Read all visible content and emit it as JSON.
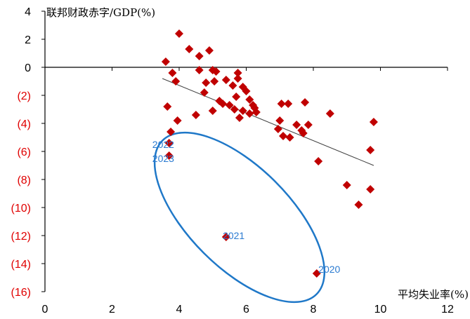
{
  "chart_data": {
    "type": "scatter",
    "ylabel": "联邦财政赤字/GDP(%)",
    "xlabel": "平均失业率(%)",
    "xlim": [
      0,
      12
    ],
    "ylim": [
      -16,
      4
    ],
    "x_ticks": [
      {
        "value": 0,
        "label": "0"
      },
      {
        "value": 2,
        "label": "2"
      },
      {
        "value": 4,
        "label": "4"
      },
      {
        "value": 6,
        "label": "6"
      },
      {
        "value": 8,
        "label": "8"
      },
      {
        "value": 10,
        "label": "10"
      },
      {
        "value": 12,
        "label": "12"
      }
    ],
    "y_ticks": [
      {
        "value": 4,
        "label": "4"
      },
      {
        "value": 2,
        "label": "2"
      },
      {
        "value": 0,
        "label": "0"
      },
      {
        "value": -2,
        "label": "(2)"
      },
      {
        "value": -4,
        "label": "(4)"
      },
      {
        "value": -6,
        "label": "(6)"
      },
      {
        "value": -8,
        "label": "(8)"
      },
      {
        "value": -10,
        "label": "(10)"
      },
      {
        "value": -12,
        "label": "(12)"
      },
      {
        "value": -14,
        "label": "(14)"
      },
      {
        "value": -16,
        "label": "(16)"
      }
    ],
    "colors": {
      "points": "#c00000",
      "trendline": "#404040",
      "ellipse": "#1f78c8",
      "annotation": "#2b7bd1",
      "negative_tick": "#e00000",
      "positive_tick": "#000000"
    },
    "points": [
      {
        "x": 3.6,
        "y": 0.4
      },
      {
        "x": 4.0,
        "y": 2.4
      },
      {
        "x": 4.3,
        "y": 1.3
      },
      {
        "x": 4.6,
        "y": 0.8
      },
      {
        "x": 4.9,
        "y": 1.2
      },
      {
        "x": 3.8,
        "y": -0.4
      },
      {
        "x": 3.9,
        "y": -1.0
      },
      {
        "x": 3.65,
        "y": -2.8
      },
      {
        "x": 3.95,
        "y": -3.8
      },
      {
        "x": 3.75,
        "y": -4.6
      },
      {
        "x": 3.7,
        "y": -5.4
      },
      {
        "x": 3.7,
        "y": -6.3
      },
      {
        "x": 4.5,
        "y": -3.4
      },
      {
        "x": 4.6,
        "y": -0.2
      },
      {
        "x": 5.0,
        "y": -0.2
      },
      {
        "x": 4.8,
        "y": -1.1
      },
      {
        "x": 5.05,
        "y": -1.0
      },
      {
        "x": 4.75,
        "y": -1.8
      },
      {
        "x": 5.1,
        "y": -0.3
      },
      {
        "x": 5.4,
        "y": -0.9
      },
      {
        "x": 5.2,
        "y": -2.4
      },
      {
        "x": 5.5,
        "y": -2.7
      },
      {
        "x": 5.0,
        "y": -3.1
      },
      {
        "x": 5.3,
        "y": -2.6
      },
      {
        "x": 5.6,
        "y": -1.3
      },
      {
        "x": 5.75,
        "y": -0.4
      },
      {
        "x": 5.75,
        "y": -0.8
      },
      {
        "x": 5.9,
        "y": -1.4
      },
      {
        "x": 6.0,
        "y": -1.7
      },
      {
        "x": 5.7,
        "y": -2.1
      },
      {
        "x": 6.1,
        "y": -2.3
      },
      {
        "x": 6.2,
        "y": -2.7
      },
      {
        "x": 5.65,
        "y": -3.0
      },
      {
        "x": 5.8,
        "y": -3.6
      },
      {
        "x": 5.9,
        "y": -3.1
      },
      {
        "x": 6.1,
        "y": -3.3
      },
      {
        "x": 6.25,
        "y": -2.9
      },
      {
        "x": 6.3,
        "y": -3.2
      },
      {
        "x": 7.05,
        "y": -2.6
      },
      {
        "x": 7.25,
        "y": -2.6
      },
      {
        "x": 7.0,
        "y": -3.8
      },
      {
        "x": 6.95,
        "y": -4.4
      },
      {
        "x": 7.1,
        "y": -4.9
      },
      {
        "x": 7.3,
        "y": -5.0
      },
      {
        "x": 7.5,
        "y": -4.1
      },
      {
        "x": 7.65,
        "y": -4.5
      },
      {
        "x": 7.7,
        "y": -4.7
      },
      {
        "x": 7.75,
        "y": -2.5
      },
      {
        "x": 7.85,
        "y": -4.1
      },
      {
        "x": 8.5,
        "y": -3.3
      },
      {
        "x": 8.15,
        "y": -6.7
      },
      {
        "x": 9.0,
        "y": -8.4
      },
      {
        "x": 9.35,
        "y": -9.8
      },
      {
        "x": 9.7,
        "y": -5.9
      },
      {
        "x": 9.7,
        "y": -8.7
      },
      {
        "x": 9.8,
        "y": -3.9
      },
      {
        "x": 5.4,
        "y": -12.1
      },
      {
        "x": 8.1,
        "y": -14.7
      }
    ],
    "trendline": {
      "x": [
        3.5,
        9.8
      ],
      "y": [
        -0.8,
        -7.0
      ]
    },
    "annotations": [
      {
        "label": "2022",
        "x": 3.2,
        "y": -5.5
      },
      {
        "label": "2023",
        "x": 3.2,
        "y": -6.5
      },
      {
        "label": "2021",
        "x": 5.3,
        "y": -12.0
      },
      {
        "label": "2020",
        "x": 8.15,
        "y": -14.4
      }
    ],
    "highlight_ellipse": {
      "center": {
        "x": 5.8,
        "y": -10.7
      },
      "covers": [
        "2020",
        "2021",
        "2022",
        "2023"
      ]
    }
  }
}
